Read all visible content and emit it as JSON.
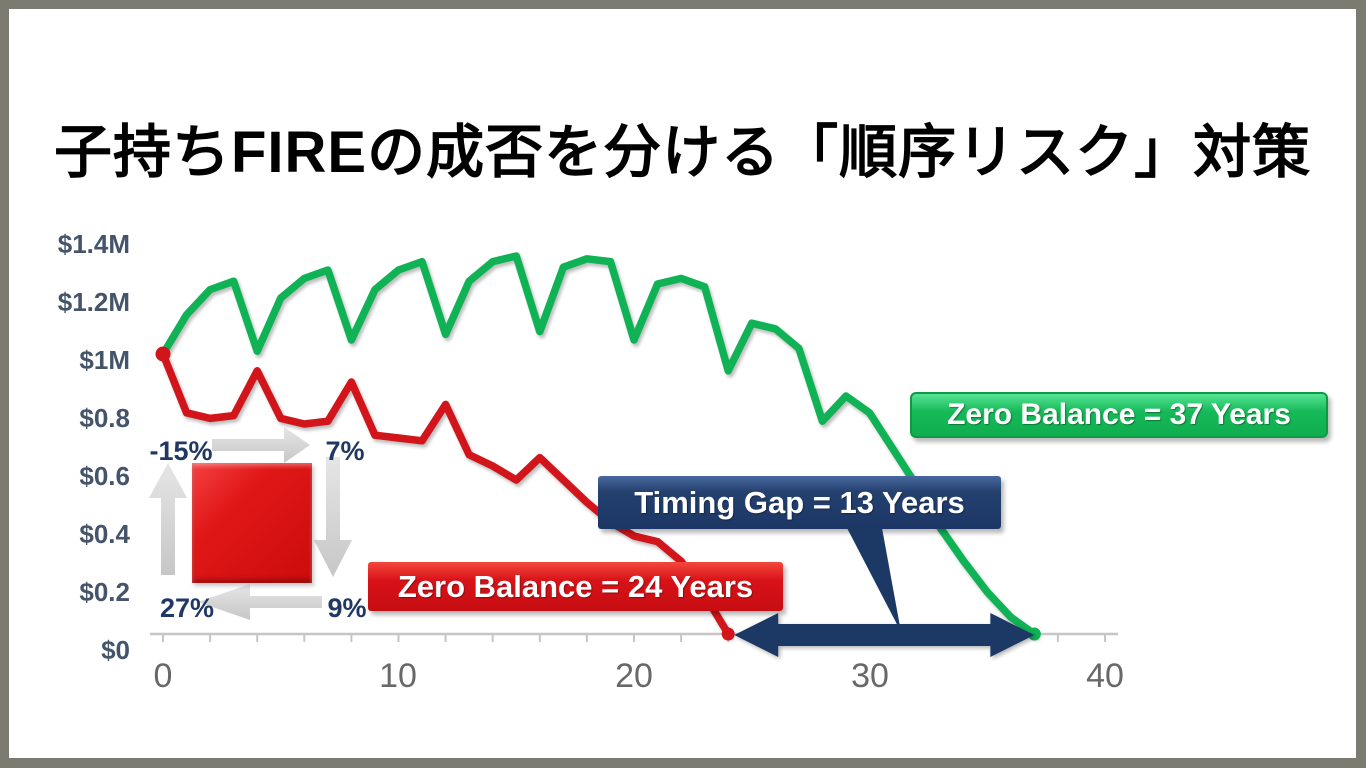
{
  "slide": {
    "title": "子持ちFIREの成否を分ける「順序リスク」対策",
    "border_color": "#7b7b72",
    "background": "#ffffff"
  },
  "chart_data": {
    "type": "line",
    "title": "",
    "grid": false,
    "legend_position": "none",
    "x_axis": {
      "ticks": [
        "0",
        "10",
        "20",
        "30",
        "40"
      ],
      "range_years": [
        0,
        40
      ],
      "minor_tick_step": 2
    },
    "y_axis": {
      "tick_labels": [
        "$0",
        "$0.2",
        "$0.4",
        "$0.6",
        "$0.8",
        "$1M",
        "$1.2M",
        "$1.4M"
      ],
      "range_millions": [
        0,
        1.4
      ]
    },
    "series": [
      {
        "key": "green",
        "name": "favorable-sequence-portfolio",
        "color": "#0fb355",
        "zero_balance_year": 37,
        "markers": {
          "start": false,
          "end": true
        },
        "x": [
          0,
          1,
          2,
          3,
          4,
          5,
          6,
          7,
          8,
          9,
          10,
          11,
          12,
          13,
          14,
          15,
          16,
          17,
          18,
          19,
          20,
          21,
          22,
          23,
          24,
          25,
          26,
          27,
          28,
          29,
          30,
          31,
          32,
          33,
          34,
          35,
          36,
          37
        ],
        "values_millions": [
          1.0,
          1.14,
          1.23,
          1.26,
          1.01,
          1.2,
          1.27,
          1.3,
          1.05,
          1.23,
          1.3,
          1.33,
          1.07,
          1.26,
          1.33,
          1.35,
          1.08,
          1.31,
          1.34,
          1.33,
          1.05,
          1.25,
          1.27,
          1.24,
          0.94,
          1.11,
          1.09,
          1.02,
          0.76,
          0.85,
          0.79,
          0.66,
          0.53,
          0.38,
          0.26,
          0.15,
          0.06,
          0.0
        ]
      },
      {
        "key": "red",
        "name": "adverse-sequence-portfolio",
        "color": "#d2151b",
        "zero_balance_year": 24,
        "markers": {
          "start": true,
          "end": true
        },
        "x": [
          0,
          1,
          2,
          3,
          4,
          5,
          6,
          7,
          8,
          9,
          10,
          11,
          12,
          13,
          14,
          15,
          16,
          17,
          18,
          19,
          20,
          21,
          22,
          23,
          24
        ],
        "values_millions": [
          1.0,
          0.79,
          0.77,
          0.78,
          0.94,
          0.77,
          0.75,
          0.76,
          0.9,
          0.71,
          0.7,
          0.69,
          0.82,
          0.64,
          0.6,
          0.55,
          0.63,
          0.55,
          0.47,
          0.4,
          0.35,
          0.33,
          0.26,
          0.14,
          0.0
        ]
      }
    ],
    "callouts": {
      "green_label": "Zero Balance = 37 Years",
      "red_label": "Zero Balance = 24 Years",
      "gap_label": "Timing Gap = 13 Years",
      "gap_years": [
        24,
        37
      ]
    },
    "returns_cycle": {
      "top_left": "-15%",
      "top_right": "7%",
      "bottom_right": "9%",
      "bottom_left": "27%"
    }
  },
  "colors": {
    "green": "#0fb355",
    "red": "#d2151b",
    "navy": "#1c3864",
    "axis": "#c6c6c6",
    "x_tick_text": "#686868",
    "y_tick_text": "#44546a",
    "pct_text": "#1f3864"
  }
}
